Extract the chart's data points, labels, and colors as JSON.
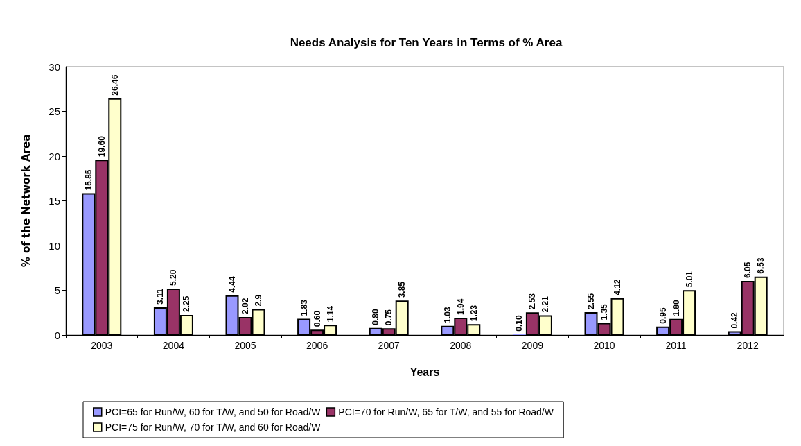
{
  "chart_data": {
    "type": "bar",
    "title": "Needs Analysis for Ten Years in Terms of % Area",
    "xlabel": "Years",
    "ylabel": "% of the Network Area",
    "categories": [
      "2003",
      "2004",
      "2005",
      "2006",
      "2007",
      "2008",
      "2009",
      "2010",
      "2011",
      "2012"
    ],
    "series": [
      {
        "name": "PCI=65 for Run/W, 60 for T/W, and 50 for Road/W",
        "color": "#9999ff",
        "values": [
          15.85,
          3.11,
          4.44,
          1.83,
          0.8,
          1.03,
          0.1,
          2.55,
          0.95,
          0.42
        ],
        "value_labels": [
          "15.85",
          "3.11",
          "4.44",
          "1.83",
          "0.80",
          "1.03",
          "0.10",
          "2.55",
          "0.95",
          "0.42"
        ]
      },
      {
        "name": "PCI=70 for Run/W, 65 for T/W, and 55 for Road/W",
        "color": "#993366",
        "values": [
          19.6,
          5.2,
          2.02,
          0.6,
          0.75,
          1.94,
          2.53,
          1.35,
          1.8,
          6.05
        ],
        "value_labels": [
          "19.60",
          "5.20",
          "2.02",
          "0.60",
          "0.75",
          "1.94",
          "2.53",
          "1.35",
          "1.80",
          "6.05"
        ]
      },
      {
        "name": "PCI=75 for Run/W, 70 for T/W, and 60 for Road/W",
        "color": "#ffffcc",
        "values": [
          26.46,
          2.25,
          2.9,
          1.14,
          3.85,
          1.23,
          2.21,
          4.12,
          5.01,
          6.53
        ],
        "value_labels": [
          "26.46",
          "2.25",
          "2.9",
          "1.14",
          "3.85",
          "1.23",
          "2.21",
          "4.12",
          "5.01",
          "6.53"
        ]
      }
    ],
    "ylim": [
      0,
      30
    ],
    "yticks": [
      0,
      5,
      10,
      15,
      20,
      25,
      30
    ],
    "grid": false,
    "legend": "bottom"
  }
}
